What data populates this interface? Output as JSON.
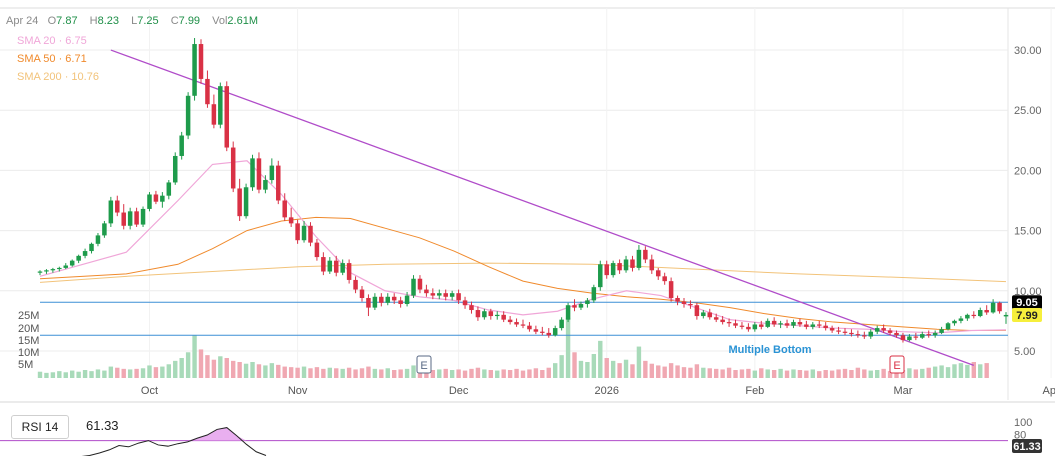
{
  "header": {
    "date": "Apr 24",
    "open_label": "O",
    "open": "7.87",
    "high_label": "H",
    "high": "8.23",
    "low_label": "L",
    "low": "7.25",
    "close_label": "C",
    "close": "7.99",
    "vol_label": "Vol",
    "vol": "2.61M"
  },
  "indicators": [
    {
      "label": "SMA 20 · 6.75",
      "color": "#f0a6d8"
    },
    {
      "label": "SMA 50 · 6.71",
      "color": "#f08a2c"
    },
    {
      "label": "SMA 200 · 10.76",
      "color": "#f2c37a"
    }
  ],
  "rsi": {
    "label": "RSI 14",
    "value": "61.33",
    "ticks": [
      "100",
      "80"
    ],
    "badge": "61.33"
  },
  "colors": {
    "up": "#1e9b4b",
    "down": "#d93145",
    "trendline": "#b04cc9",
    "hline": "#3d8fd6",
    "grid": "#ececec",
    "rsi_fill": "#e7a6ee",
    "rsi_line": "#222222",
    "price_badge": "#000000",
    "close_badge": "#f6ef3c"
  },
  "chart_data": {
    "type": "candlestick",
    "y_range": [
      3.5,
      31.5
    ],
    "y_ticks": [
      "30.00",
      "25.00",
      "20.00",
      "15.00",
      "10.00",
      "5.00"
    ],
    "x_labels": [
      "Oct",
      "Nov",
      "Dec",
      "2026",
      "Feb",
      "Mar",
      "Apr"
    ],
    "volume_ticks": [
      "25M",
      "20M",
      "15M",
      "10M",
      "5M"
    ],
    "price_badge": "9.05",
    "close_badge": "7.99",
    "horizontal_levels": [
      9.05,
      6.3
    ],
    "annotations": [
      "Multiple Bottom"
    ],
    "event_markers": [
      "E",
      "E"
    ],
    "trendline": {
      "from": [
        11,
        30.0
      ],
      "to": [
        145,
        3.8
      ]
    },
    "candles": [
      [
        11.5,
        11.7,
        11.3,
        11.6
      ],
      [
        11.6,
        11.8,
        11.4,
        11.7
      ],
      [
        11.7,
        11.9,
        11.5,
        11.8
      ],
      [
        11.8,
        12.0,
        11.6,
        11.9
      ],
      [
        11.9,
        12.3,
        11.8,
        12.1
      ],
      [
        12.1,
        12.6,
        12.0,
        12.5
      ],
      [
        12.5,
        13.0,
        12.3,
        12.9
      ],
      [
        12.9,
        13.5,
        12.7,
        13.3
      ],
      [
        13.3,
        14.0,
        13.1,
        13.9
      ],
      [
        13.9,
        14.8,
        13.7,
        14.6
      ],
      [
        14.6,
        15.8,
        14.4,
        15.6
      ],
      [
        15.6,
        17.8,
        15.3,
        17.5
      ],
      [
        17.5,
        17.9,
        16.2,
        16.5
      ],
      [
        16.5,
        17.2,
        15.1,
        15.4
      ],
      [
        15.4,
        16.9,
        15.1,
        16.6
      ],
      [
        16.6,
        16.9,
        15.3,
        15.5
      ],
      [
        15.5,
        17.0,
        15.3,
        16.8
      ],
      [
        16.8,
        18.2,
        16.6,
        18.0
      ],
      [
        18.0,
        18.3,
        17.2,
        17.4
      ],
      [
        17.4,
        18.2,
        16.9,
        17.9
      ],
      [
        17.9,
        19.2,
        17.6,
        19.0
      ],
      [
        19.0,
        21.5,
        18.8,
        21.2
      ],
      [
        21.2,
        23.2,
        20.9,
        22.9
      ],
      [
        22.9,
        26.5,
        22.6,
        26.2
      ],
      [
        26.2,
        31.0,
        25.8,
        30.5
      ],
      [
        30.5,
        30.9,
        27.2,
        27.6
      ],
      [
        27.6,
        28.3,
        25.2,
        25.5
      ],
      [
        25.5,
        26.3,
        23.5,
        23.8
      ],
      [
        23.8,
        27.3,
        23.5,
        27.0
      ],
      [
        27.0,
        27.4,
        21.6,
        21.9
      ],
      [
        21.9,
        22.4,
        18.2,
        18.5
      ],
      [
        18.5,
        19.3,
        15.8,
        16.2
      ],
      [
        16.2,
        18.9,
        16.0,
        18.6
      ],
      [
        18.6,
        21.3,
        18.3,
        21.0
      ],
      [
        21.0,
        21.5,
        18.1,
        18.4
      ],
      [
        18.4,
        19.6,
        18.1,
        19.2
      ],
      [
        19.2,
        21.0,
        18.9,
        20.4
      ],
      [
        20.4,
        20.8,
        17.2,
        17.5
      ],
      [
        17.5,
        18.1,
        15.8,
        16.1
      ],
      [
        16.1,
        16.9,
        15.3,
        15.6
      ],
      [
        15.6,
        15.9,
        13.9,
        14.2
      ],
      [
        14.2,
        15.8,
        14.0,
        15.4
      ],
      [
        15.4,
        15.7,
        13.7,
        14.0
      ],
      [
        14.0,
        14.3,
        12.5,
        12.8
      ],
      [
        12.8,
        13.2,
        11.3,
        11.6
      ],
      [
        11.6,
        12.8,
        11.4,
        12.5
      ],
      [
        12.5,
        12.9,
        11.2,
        11.5
      ],
      [
        11.5,
        12.6,
        11.3,
        12.3
      ],
      [
        12.3,
        12.6,
        10.6,
        10.9
      ],
      [
        10.9,
        11.2,
        9.8,
        10.1
      ],
      [
        10.1,
        10.4,
        9.1,
        9.4
      ],
      [
        9.4,
        9.7,
        7.9,
        8.6
      ],
      [
        8.6,
        9.8,
        8.4,
        9.5
      ],
      [
        9.5,
        9.8,
        8.7,
        9.0
      ],
      [
        9.0,
        9.8,
        8.8,
        9.5
      ],
      [
        9.5,
        9.8,
        8.9,
        9.2
      ],
      [
        9.2,
        9.5,
        8.6,
        8.9
      ],
      [
        8.9,
        9.9,
        8.7,
        9.6
      ],
      [
        9.6,
        11.3,
        9.4,
        11.0
      ],
      [
        11.0,
        11.3,
        9.8,
        10.1
      ],
      [
        10.1,
        10.5,
        9.5,
        9.8
      ],
      [
        9.8,
        10.2,
        9.3,
        9.6
      ],
      [
        9.6,
        10.1,
        9.3,
        9.8
      ],
      [
        9.8,
        10.1,
        9.2,
        9.5
      ],
      [
        9.5,
        10.0,
        9.2,
        9.8
      ],
      [
        9.8,
        10.1,
        8.9,
        9.2
      ],
      [
        9.2,
        9.5,
        8.5,
        8.8
      ],
      [
        8.8,
        9.1,
        8.1,
        8.4
      ],
      [
        8.4,
        8.7,
        7.5,
        7.8
      ],
      [
        7.8,
        8.5,
        7.6,
        8.3
      ],
      [
        8.3,
        8.5,
        7.6,
        7.9
      ],
      [
        7.9,
        8.3,
        7.6,
        8.0
      ],
      [
        8.0,
        8.3,
        7.4,
        7.6
      ],
      [
        7.6,
        7.9,
        7.2,
        7.4
      ],
      [
        7.4,
        7.7,
        7.0,
        7.2
      ],
      [
        7.2,
        7.6,
        6.9,
        7.1
      ],
      [
        7.1,
        7.4,
        6.6,
        6.8
      ],
      [
        6.8,
        7.1,
        6.4,
        6.6
      ],
      [
        6.6,
        7.0,
        6.3,
        6.5
      ],
      [
        6.5,
        6.9,
        6.1,
        6.3
      ],
      [
        6.3,
        7.1,
        6.2,
        6.9
      ],
      [
        6.9,
        7.8,
        6.7,
        7.6
      ],
      [
        7.6,
        9.0,
        7.4,
        8.8
      ],
      [
        8.8,
        9.3,
        8.3,
        8.6
      ],
      [
        8.6,
        9.1,
        8.4,
        8.9
      ],
      [
        8.9,
        9.4,
        8.6,
        9.2
      ],
      [
        9.2,
        10.5,
        9.0,
        10.3
      ],
      [
        10.3,
        12.5,
        10.0,
        12.2
      ],
      [
        12.2,
        12.5,
        11.0,
        11.3
      ],
      [
        11.3,
        12.5,
        11.1,
        12.3
      ],
      [
        12.3,
        12.6,
        11.4,
        11.7
      ],
      [
        11.7,
        12.9,
        11.5,
        12.6
      ],
      [
        12.6,
        12.9,
        11.6,
        11.9
      ],
      [
        11.9,
        13.8,
        11.7,
        13.4
      ],
      [
        13.4,
        13.7,
        12.3,
        12.6
      ],
      [
        12.6,
        13.0,
        11.4,
        11.7
      ],
      [
        11.7,
        11.9,
        10.9,
        11.2
      ],
      [
        11.2,
        11.5,
        10.5,
        10.8
      ],
      [
        10.8,
        11.1,
        9.1,
        9.4
      ],
      [
        9.4,
        9.6,
        8.8,
        9.1
      ],
      [
        9.1,
        9.4,
        8.6,
        8.9
      ],
      [
        8.9,
        9.2,
        8.5,
        8.8
      ],
      [
        8.8,
        9.0,
        7.6,
        7.9
      ],
      [
        7.9,
        8.4,
        7.7,
        8.2
      ],
      [
        8.2,
        8.5,
        7.6,
        7.8
      ],
      [
        7.8,
        8.1,
        7.4,
        7.6
      ],
      [
        7.6,
        7.9,
        7.2,
        7.4
      ],
      [
        7.4,
        7.7,
        7.0,
        7.3
      ],
      [
        7.3,
        7.6,
        6.9,
        7.1
      ],
      [
        7.1,
        7.4,
        6.8,
        7.0
      ],
      [
        7.0,
        7.3,
        6.6,
        6.8
      ],
      [
        6.8,
        7.4,
        6.6,
        7.2
      ],
      [
        7.2,
        7.5,
        6.8,
        7.0
      ],
      [
        7.0,
        7.7,
        6.9,
        7.5
      ],
      [
        7.5,
        7.8,
        7.0,
        7.2
      ],
      [
        7.2,
        7.5,
        6.9,
        7.3
      ],
      [
        7.3,
        7.6,
        6.9,
        7.1
      ],
      [
        7.1,
        7.6,
        6.9,
        7.4
      ],
      [
        7.4,
        7.7,
        7.0,
        7.2
      ],
      [
        7.2,
        7.5,
        6.8,
        7.0
      ],
      [
        7.0,
        7.4,
        6.8,
        7.2
      ],
      [
        7.2,
        7.5,
        6.9,
        7.1
      ],
      [
        7.1,
        7.4,
        6.7,
        6.9
      ],
      [
        6.9,
        7.1,
        6.5,
        6.7
      ],
      [
        6.7,
        7.0,
        6.4,
        6.6
      ],
      [
        6.6,
        6.9,
        6.3,
        6.5
      ],
      [
        6.5,
        6.8,
        6.2,
        6.4
      ],
      [
        6.4,
        6.7,
        6.1,
        6.3
      ],
      [
        6.3,
        6.6,
        6.0,
        6.2
      ],
      [
        6.2,
        6.8,
        6.0,
        6.6
      ],
      [
        6.6,
        7.1,
        6.4,
        6.9
      ],
      [
        6.9,
        7.2,
        6.5,
        6.7
      ],
      [
        6.7,
        6.9,
        6.3,
        6.5
      ],
      [
        6.5,
        6.7,
        6.1,
        6.3
      ],
      [
        6.3,
        6.5,
        5.7,
        5.9
      ],
      [
        5.9,
        6.4,
        5.8,
        6.2
      ],
      [
        6.2,
        6.5,
        5.9,
        6.1
      ],
      [
        6.1,
        6.6,
        6.0,
        6.4
      ],
      [
        6.4,
        6.7,
        6.1,
        6.3
      ],
      [
        6.3,
        6.7,
        6.1,
        6.5
      ],
      [
        6.5,
        7.0,
        6.4,
        6.8
      ],
      [
        6.8,
        7.4,
        6.7,
        7.3
      ],
      [
        7.3,
        7.6,
        7.1,
        7.5
      ],
      [
        7.5,
        7.9,
        7.3,
        7.7
      ],
      [
        7.7,
        8.1,
        7.5,
        8.0
      ],
      [
        8.0,
        8.3,
        7.7,
        7.9
      ],
      [
        7.9,
        8.6,
        7.8,
        8.4
      ],
      [
        8.4,
        8.8,
        8.0,
        8.2
      ],
      [
        8.2,
        9.3,
        8.1,
        9.0
      ],
      [
        9.0,
        9.1,
        8.1,
        8.3
      ],
      [
        7.87,
        8.23,
        7.25,
        7.99
      ]
    ],
    "volumes": [
      1.1,
      0.9,
      1.0,
      1.2,
      1.0,
      1.3,
      1.1,
      1.4,
      1.2,
      1.5,
      1.3,
      2.0,
      1.8,
      1.6,
      1.5,
      1.6,
      1.7,
      2.2,
      1.9,
      2.0,
      2.4,
      3.0,
      3.5,
      4.5,
      7.5,
      5.0,
      4.0,
      3.2,
      3.8,
      3.5,
      3.0,
      2.8,
      2.5,
      2.8,
      2.4,
      2.2,
      2.6,
      2.3,
      2.0,
      1.9,
      1.8,
      2.0,
      1.7,
      1.9,
      1.6,
      1.8,
      1.7,
      1.6,
      1.8,
      1.5,
      1.7,
      2.0,
      1.6,
      1.5,
      1.7,
      1.4,
      1.5,
      1.6,
      2.2,
      1.8,
      1.5,
      1.4,
      1.5,
      1.6,
      1.4,
      1.5,
      1.3,
      1.6,
      1.8,
      1.5,
      1.4,
      1.3,
      1.5,
      1.4,
      1.6,
      1.3,
      1.5,
      1.7,
      1.4,
      1.8,
      2.6,
      4.0,
      10.5,
      4.5,
      3.0,
      2.8,
      4.2,
      6.5,
      3.5,
      3.0,
      2.6,
      3.2,
      2.4,
      5.5,
      3.0,
      2.5,
      2.2,
      2.0,
      2.6,
      2.2,
      1.9,
      1.8,
      2.4,
      1.8,
      1.7,
      1.6,
      1.5,
      1.8,
      1.4,
      1.5,
      1.6,
      1.3,
      1.7,
      1.5,
      1.4,
      1.6,
      1.3,
      1.5,
      1.4,
      1.3,
      1.5,
      1.2,
      1.4,
      1.3,
      1.5,
      1.6,
      1.4,
      1.8,
      1.5,
      1.3,
      1.4,
      1.6,
      1.2,
      1.5,
      1.4,
      1.7,
      1.5,
      1.6,
      1.8,
      2.0,
      2.2,
      1.9,
      2.4,
      2.6,
      2.3,
      2.8,
      2.4,
      2.61
    ],
    "sma20": [
      [
        0,
        11.2
      ],
      [
        20,
        13.2
      ],
      [
        32,
        17.5
      ],
      [
        40,
        20.5
      ],
      [
        48,
        20.8
      ],
      [
        56,
        18.0
      ],
      [
        64,
        14.5
      ],
      [
        72,
        11.5
      ],
      [
        80,
        10.0
      ],
      [
        88,
        9.5
      ],
      [
        96,
        9.2
      ],
      [
        104,
        8.4
      ],
      [
        112,
        8.0
      ],
      [
        120,
        8.3
      ],
      [
        128,
        9.3
      ],
      [
        136,
        10.0
      ],
      [
        144,
        9.6
      ],
      [
        152,
        8.6
      ],
      [
        160,
        7.6
      ],
      [
        168,
        7.3
      ],
      [
        176,
        7.1
      ],
      [
        184,
        6.9
      ],
      [
        192,
        6.8
      ],
      [
        200,
        6.6
      ],
      [
        208,
        6.5
      ],
      [
        216,
        6.7
      ],
      [
        224,
        6.75
      ]
    ],
    "sma50": [
      [
        0,
        11.0
      ],
      [
        20,
        11.4
      ],
      [
        32,
        12.2
      ],
      [
        40,
        13.5
      ],
      [
        48,
        15.0
      ],
      [
        56,
        15.8
      ],
      [
        64,
        16.1
      ],
      [
        72,
        16.0
      ],
      [
        80,
        15.2
      ],
      [
        88,
        14.4
      ],
      [
        96,
        13.3
      ],
      [
        104,
        12.0
      ],
      [
        112,
        10.8
      ],
      [
        120,
        10.2
      ],
      [
        128,
        9.8
      ],
      [
        136,
        9.5
      ],
      [
        144,
        9.3
      ],
      [
        152,
        9.0
      ],
      [
        160,
        8.6
      ],
      [
        168,
        8.1
      ],
      [
        176,
        7.7
      ],
      [
        184,
        7.4
      ],
      [
        192,
        7.2
      ],
      [
        200,
        7.0
      ],
      [
        208,
        6.8
      ],
      [
        216,
        6.7
      ],
      [
        224,
        6.71
      ]
    ],
    "sma200": [
      [
        0,
        10.7
      ],
      [
        20,
        11.2
      ],
      [
        40,
        11.6
      ],
      [
        60,
        12.0
      ],
      [
        80,
        12.2
      ],
      [
        104,
        12.3
      ],
      [
        128,
        12.2
      ],
      [
        152,
        11.8
      ],
      [
        176,
        11.4
      ],
      [
        200,
        11.1
      ],
      [
        224,
        10.76
      ]
    ],
    "rsi_values": [
      40,
      44,
      46,
      50,
      55,
      62,
      60,
      66,
      70,
      63,
      61,
      65,
      68,
      74,
      79,
      88,
      91,
      78,
      64,
      52,
      46
    ]
  }
}
